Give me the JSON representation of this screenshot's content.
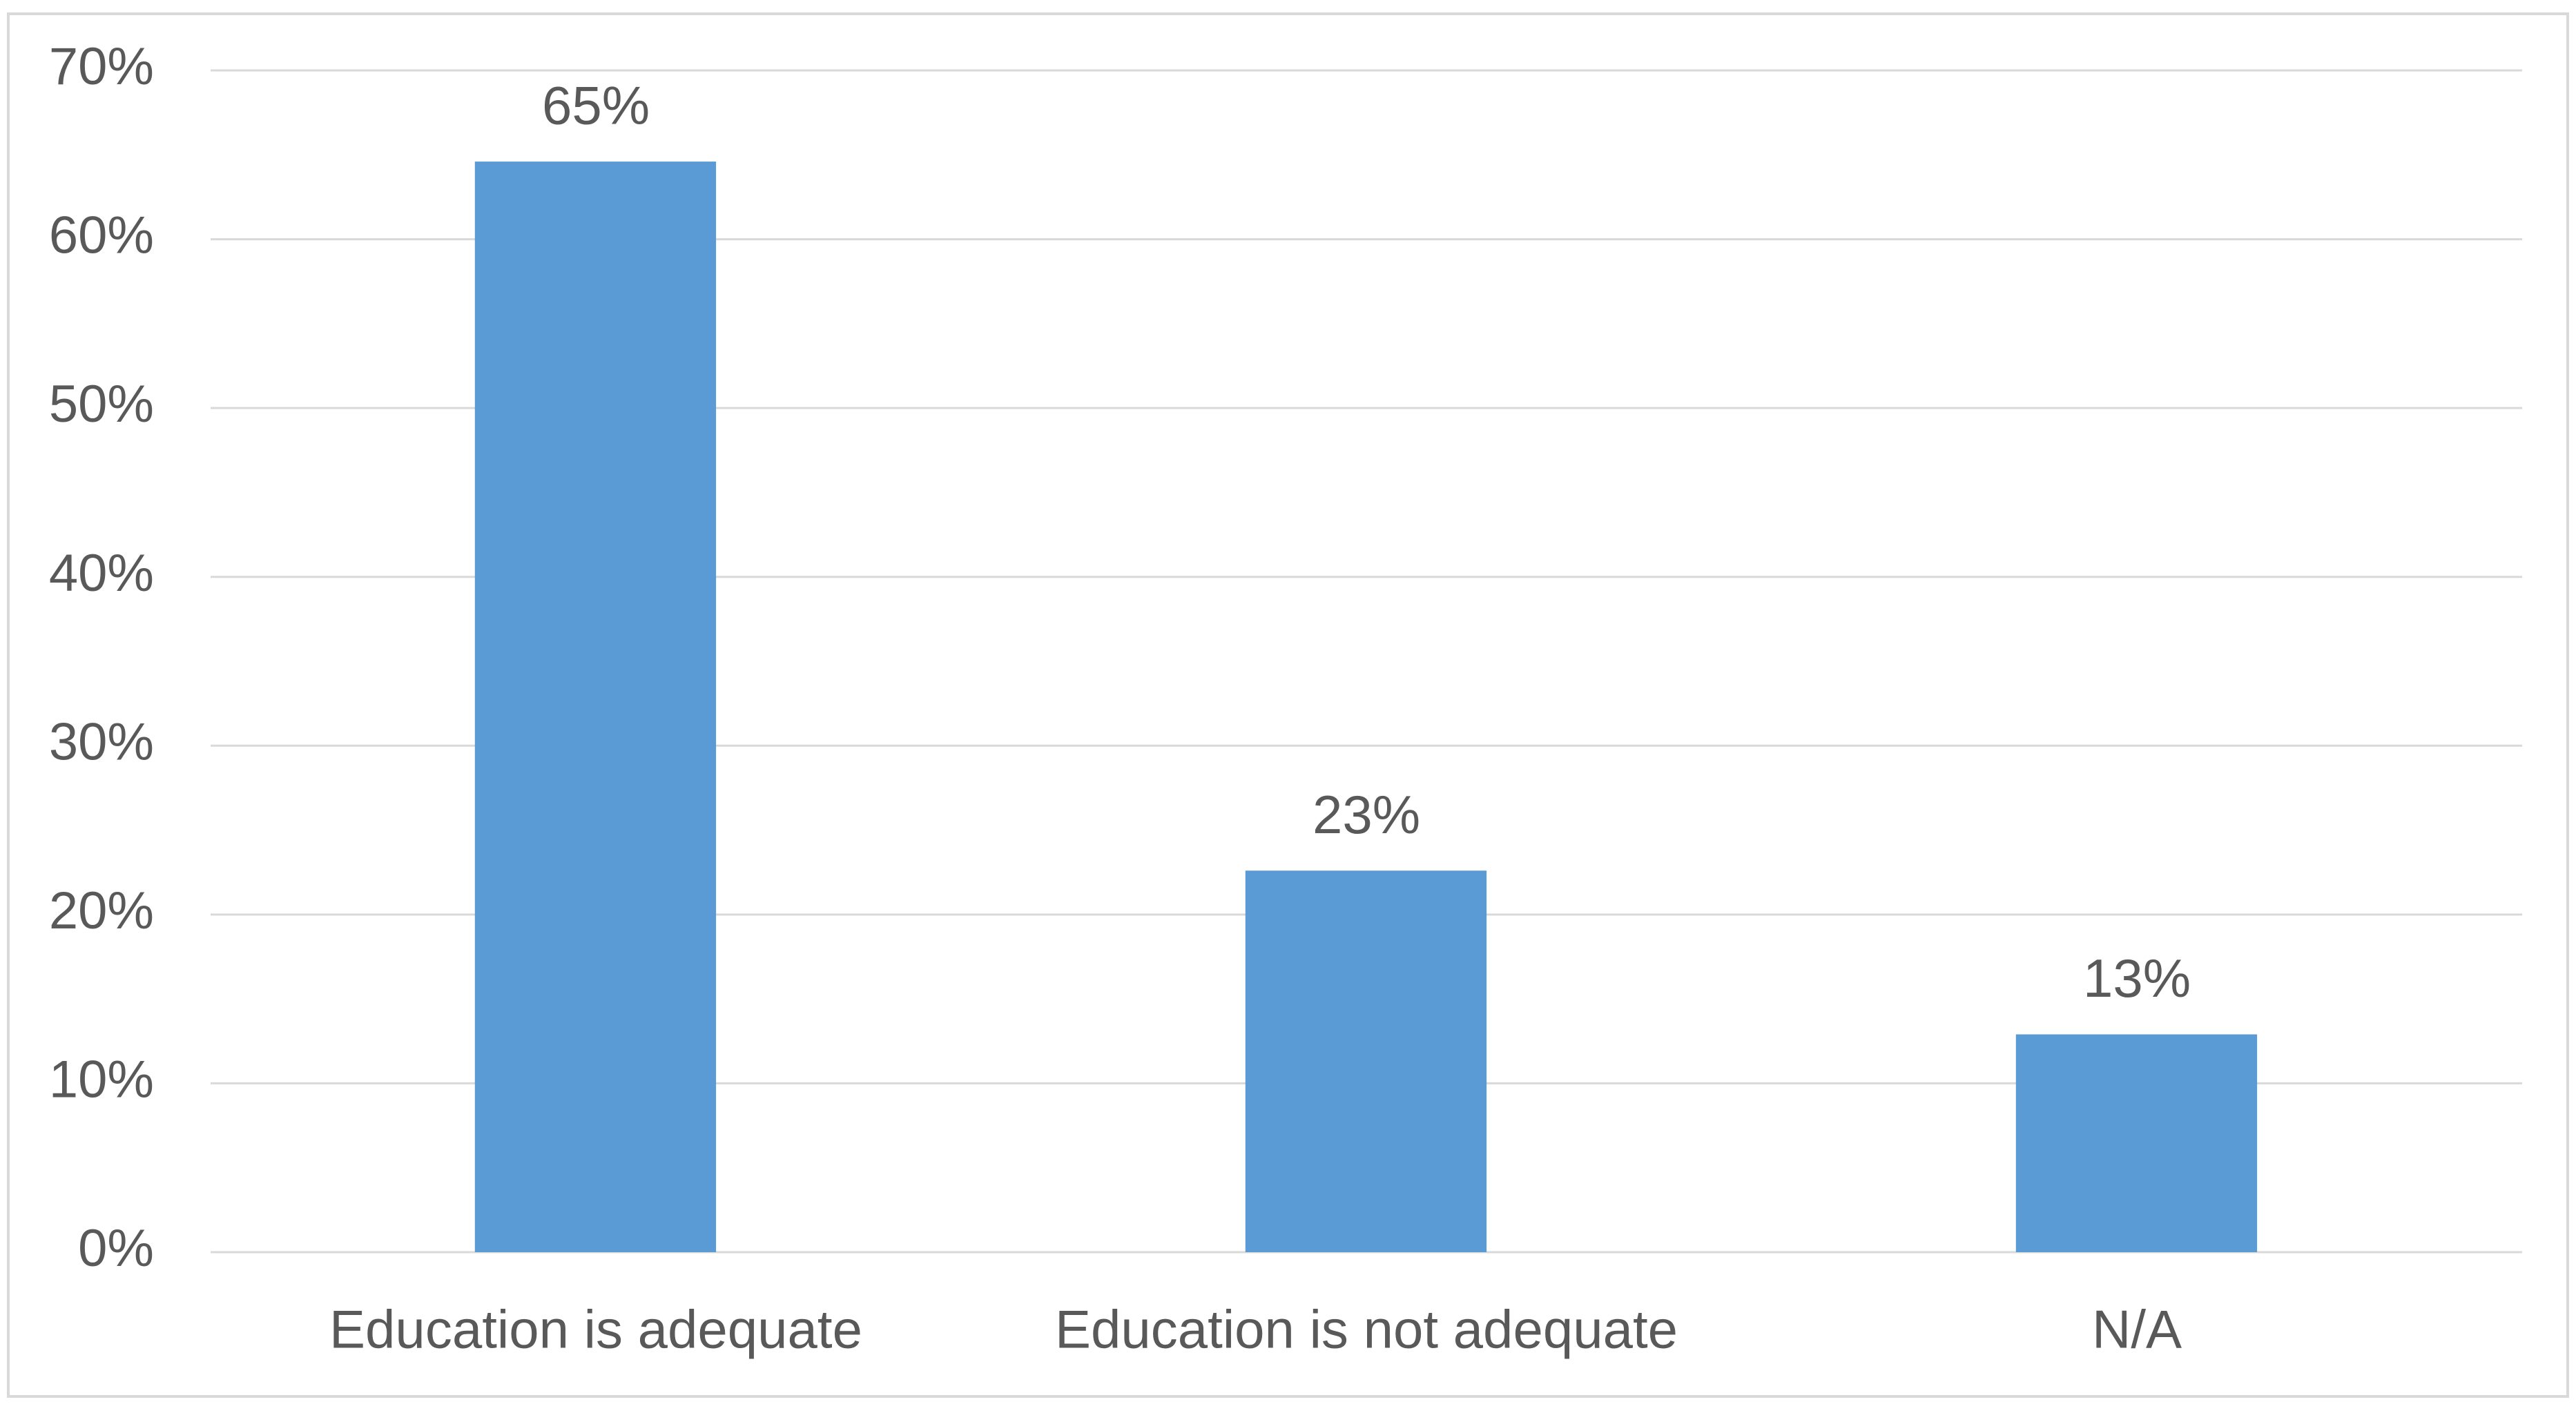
{
  "chart_data": {
    "type": "bar",
    "categories": [
      "Education is adequate",
      "Education is not adequate",
      "N/A"
    ],
    "values": [
      64.6,
      22.6,
      12.9
    ],
    "value_labels": [
      "65%",
      "23%",
      "13%"
    ],
    "color": "#5b9bd5",
    "ylim": [
      0,
      70
    ],
    "yticks": [
      {
        "value": 0,
        "label": "0%"
      },
      {
        "value": 10,
        "label": "10%"
      },
      {
        "value": 20,
        "label": "20%"
      },
      {
        "value": 30,
        "label": "30%"
      },
      {
        "value": 40,
        "label": "40%"
      },
      {
        "value": 50,
        "label": "50%"
      },
      {
        "value": 60,
        "label": "60%"
      },
      {
        "value": 70,
        "label": "70%"
      }
    ],
    "grid": true
  }
}
